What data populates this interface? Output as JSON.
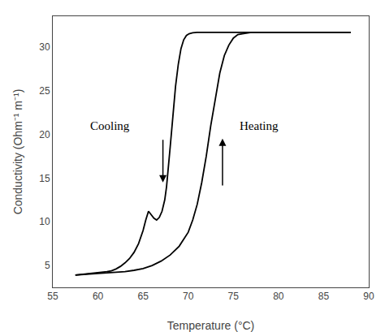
{
  "chart_data": {
    "type": "line",
    "xlabel": "Temperature (°C)",
    "ylabel": "Conductivity (Ohm⁻¹ m⁻¹)",
    "xlim": [
      55,
      90
    ],
    "ylim": [
      2.5,
      33.5
    ],
    "xticks": [
      55,
      60,
      65,
      70,
      75,
      80,
      85,
      90
    ],
    "yticks": [
      5,
      10,
      15,
      20,
      25,
      30
    ],
    "grid": false,
    "series": [
      {
        "color": "#000000",
        "x": [
          57.5,
          58.0,
          58.5,
          59.0,
          59.5,
          60.0,
          60.5,
          61.0,
          61.5,
          62.0,
          62.5,
          63.0,
          63.5,
          64.0,
          64.5,
          65.0,
          65.3,
          65.6,
          65.9,
          66.2,
          66.5,
          66.8,
          67.1,
          67.4,
          67.6,
          67.8,
          68.0,
          68.3,
          68.6,
          68.9,
          69.2,
          69.5,
          69.8,
          70.1,
          70.5,
          71.0,
          72.0,
          74.0,
          76.0,
          80.0,
          85.0,
          88.0
        ],
        "values": [
          3.9,
          3.95,
          4.0,
          4.05,
          4.1,
          4.15,
          4.2,
          4.3,
          4.4,
          4.6,
          4.9,
          5.3,
          5.8,
          6.5,
          7.5,
          9.0,
          10.2,
          11.2,
          10.8,
          10.4,
          10.2,
          10.5,
          11.2,
          12.5,
          14.0,
          16.0,
          18.5,
          22.0,
          25.5,
          28.0,
          29.8,
          30.8,
          31.3,
          31.5,
          31.6,
          31.65,
          31.65,
          31.65,
          31.65,
          31.65,
          31.65,
          31.65
        ]
      },
      {
        "color": "#000000",
        "x": [
          57.5,
          58.0,
          59.0,
          60.0,
          61.0,
          62.0,
          63.0,
          64.0,
          65.0,
          66.0,
          67.0,
          68.0,
          69.0,
          70.0,
          70.5,
          71.0,
          71.5,
          72.0,
          72.5,
          73.0,
          73.5,
          74.0,
          74.5,
          75.0,
          75.5,
          76.0,
          76.5,
          77.0,
          78.0,
          80.0,
          83.0,
          86.0,
          88.0
        ],
        "values": [
          3.9,
          3.95,
          4.0,
          4.1,
          4.15,
          4.2,
          4.3,
          4.45,
          4.65,
          5.0,
          5.5,
          6.2,
          7.2,
          8.8,
          10.2,
          12.0,
          14.5,
          17.5,
          21.0,
          24.0,
          27.0,
          29.0,
          30.2,
          31.0,
          31.4,
          31.5,
          31.6,
          31.65,
          31.65,
          31.65,
          31.65,
          31.65,
          31.65
        ]
      }
    ],
    "annotations": [
      {
        "text": "Cooling",
        "x": 59.0,
        "y": 21.0,
        "arrow": {
          "x": 67.2,
          "y_start": 19.5,
          "y_end": 14.5
        }
      },
      {
        "text": "Heating",
        "x": 75.5,
        "y": 21.0,
        "arrow": {
          "x": 73.8,
          "y_start": 14.0,
          "y_end": 19.5
        }
      }
    ]
  }
}
